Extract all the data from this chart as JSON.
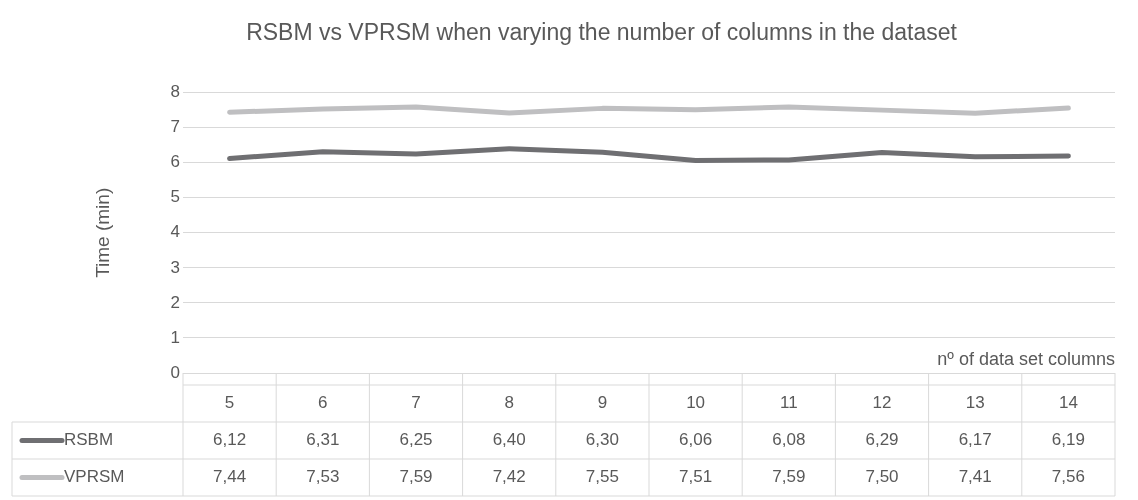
{
  "chart_data": {
    "type": "line",
    "title": "RSBM vs VPRSM when varying the number of columns in the dataset",
    "xlabel": "nº of data set columns",
    "ylabel": "Time (min)",
    "categories": [
      "5",
      "6",
      "7",
      "8",
      "9",
      "10",
      "11",
      "12",
      "13",
      "14"
    ],
    "series": [
      {
        "name": "RSBM",
        "color": "#6f6f72",
        "values": [
          6.12,
          6.31,
          6.25,
          6.4,
          6.3,
          6.06,
          6.08,
          6.29,
          6.17,
          6.19
        ],
        "value_labels": [
          "6,12",
          "6,31",
          "6,25",
          "6,40",
          "6,30",
          "6,06",
          "6,08",
          "6,29",
          "6,17",
          "6,19"
        ]
      },
      {
        "name": "VPRSM",
        "color": "#bfbfc1",
        "values": [
          7.44,
          7.53,
          7.59,
          7.42,
          7.55,
          7.51,
          7.59,
          7.5,
          7.41,
          7.56
        ],
        "value_labels": [
          "7,44",
          "7,53",
          "7,59",
          "7,42",
          "7,55",
          "7,51",
          "7,59",
          "7,50",
          "7,41",
          "7,56"
        ]
      }
    ],
    "ylim": [
      0,
      8
    ],
    "yticks": [
      0,
      1,
      2,
      3,
      4,
      5,
      6,
      7,
      8
    ],
    "grid": "y",
    "legend": "bottom left",
    "marker": "none",
    "line_style": "solid"
  }
}
